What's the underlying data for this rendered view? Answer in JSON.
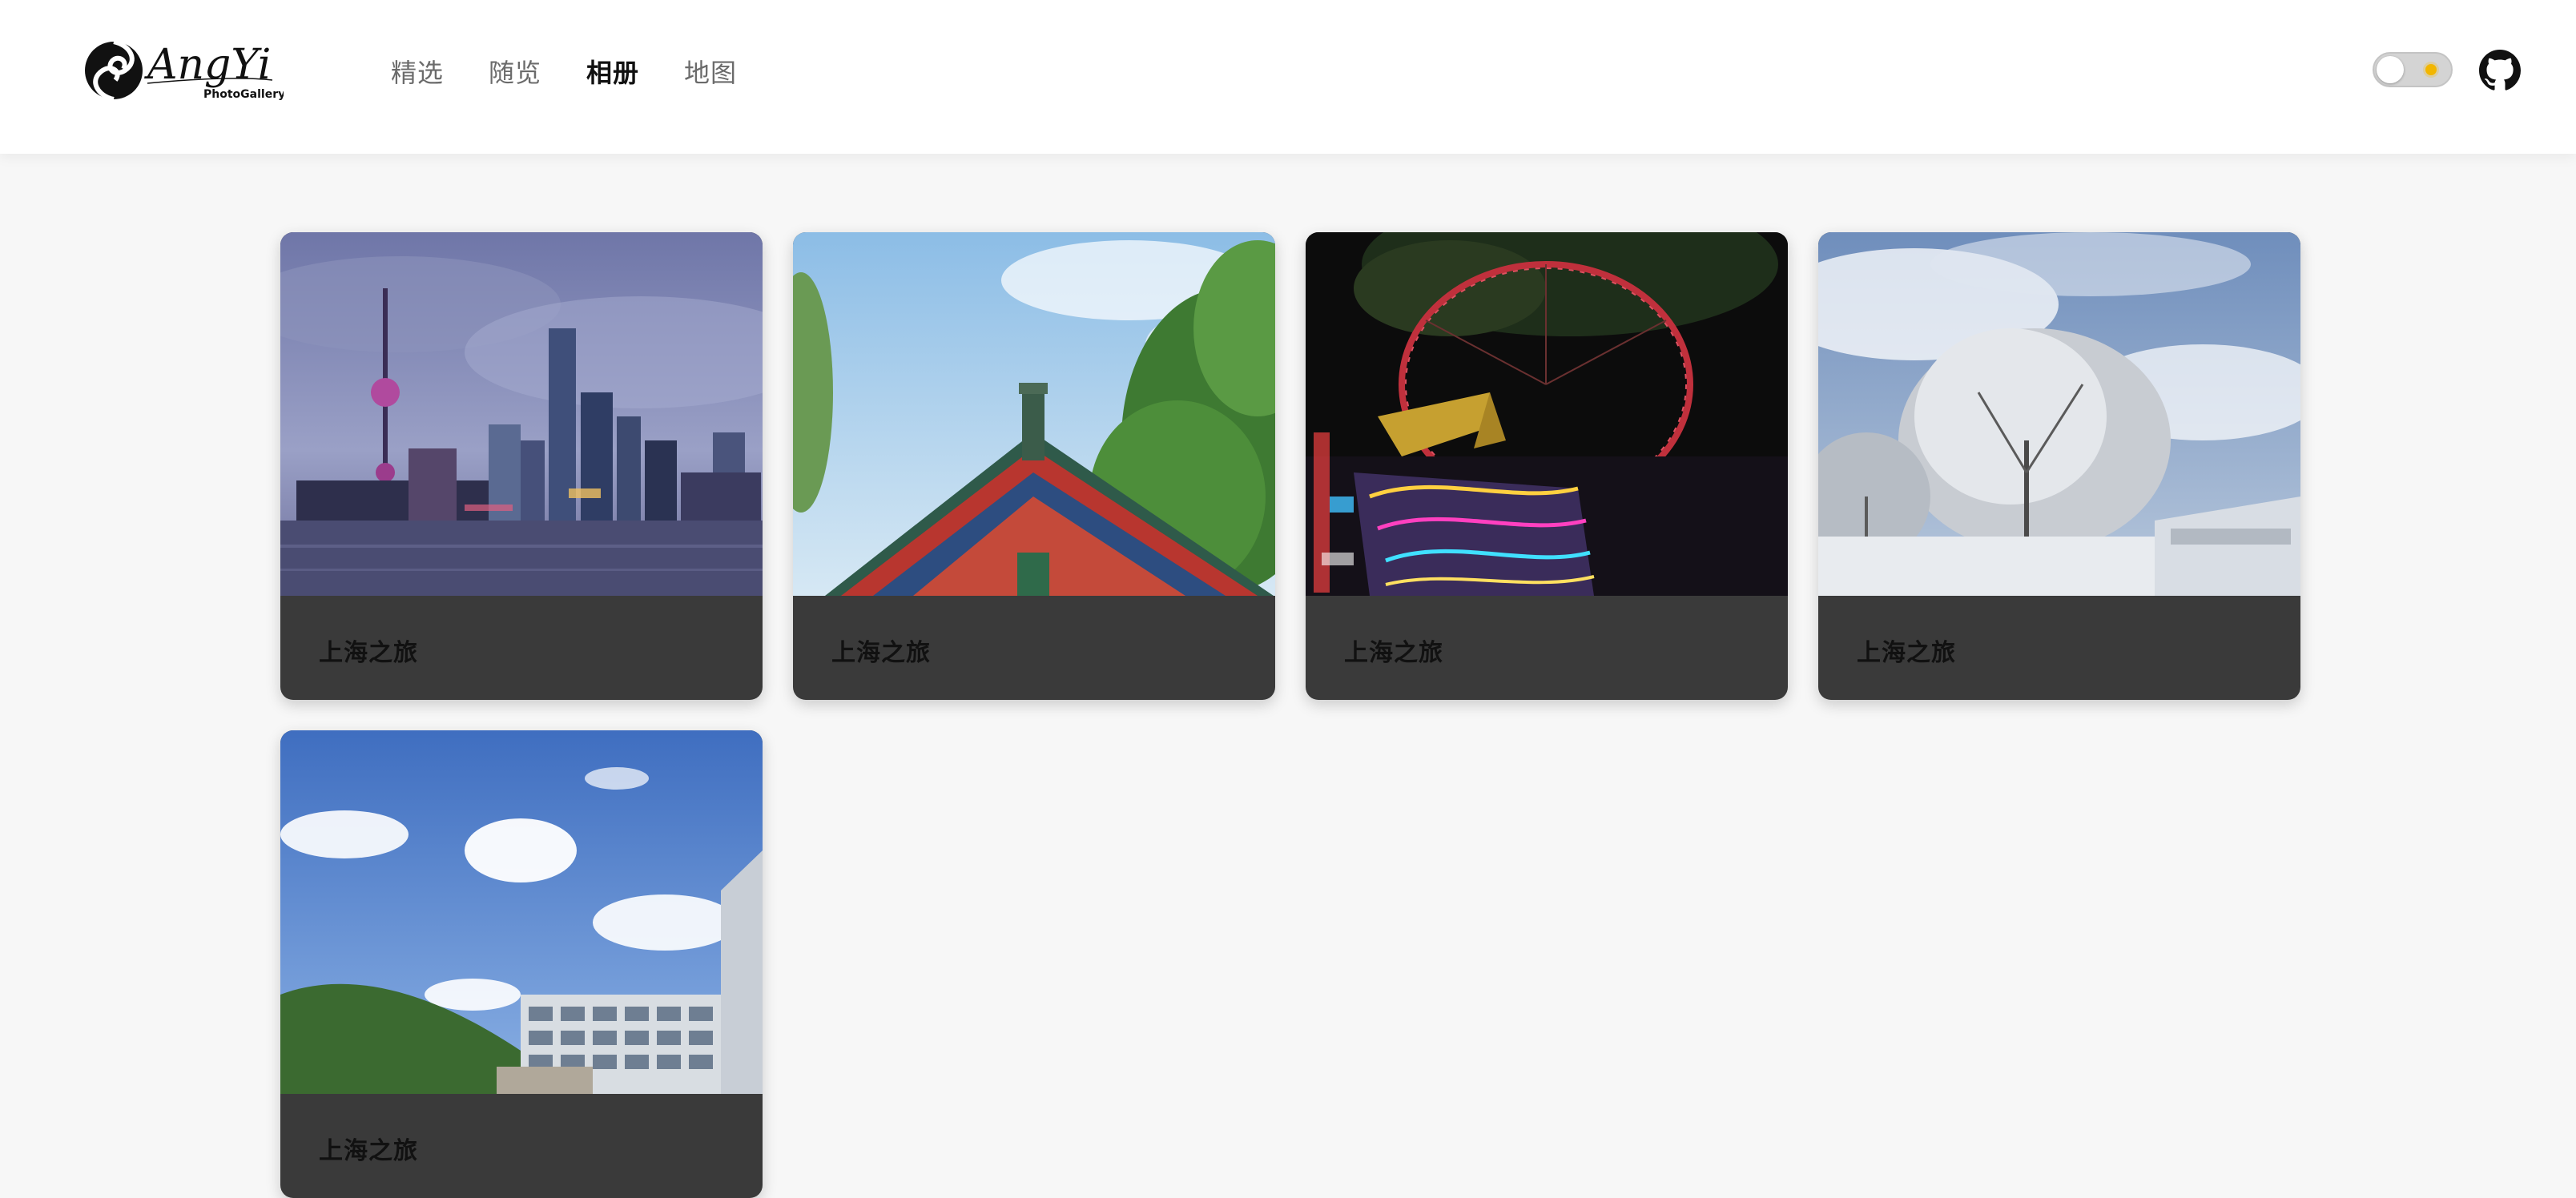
{
  "header": {
    "logo": {
      "brand": "AngYi",
      "sub": "PhotoGallery",
      "icon": "swirl-logo-icon"
    },
    "nav": [
      {
        "label": "精选",
        "active": false
      },
      {
        "label": "随览",
        "active": false
      },
      {
        "label": "相册",
        "active": true
      },
      {
        "label": "地图",
        "active": false
      }
    ],
    "theme_toggle": {
      "icon": "sun-icon",
      "state": "light"
    },
    "github_icon": "github-icon"
  },
  "albums": [
    {
      "title": "上海之旅",
      "image": "city-skyline-photo"
    },
    {
      "title": "上海之旅",
      "image": "temple-roof-photo"
    },
    {
      "title": "上海之旅",
      "image": "ferris-wheel-night-photo"
    },
    {
      "title": "上海之旅",
      "image": "snowy-trees-photo"
    },
    {
      "title": "上海之旅",
      "image": "blue-sky-building-photo"
    }
  ],
  "colors": {
    "background": "#f7f7f7",
    "header": "#ffffff",
    "card_footer": "#3a3a3a",
    "nav_active": "#111111",
    "nav_inactive": "#6b6b6b"
  }
}
